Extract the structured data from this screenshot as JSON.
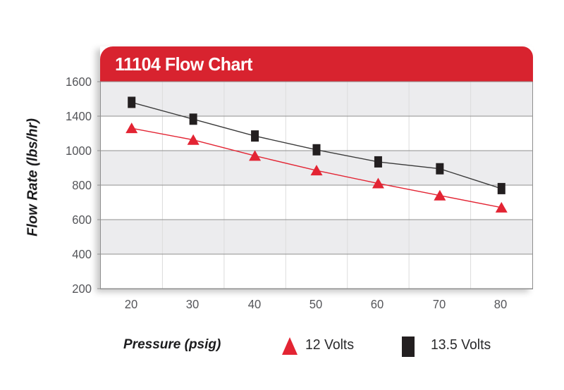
{
  "chart": {
    "title": "11104 Flow Chart",
    "banner_color": "#d8232f",
    "plot": {
      "band_color": "#ececee",
      "h_gridline_color": "#8f8f8f",
      "v_gridline_color": "#dcdcdc"
    },
    "y_axis": {
      "label": "Flow Rate (lbs/hr)",
      "tick_labels": [
        "1600",
        "1400",
        "1000",
        "800",
        "600",
        "400",
        "200"
      ]
    },
    "x_axis": {
      "label": "Pressure (psig)",
      "tick_labels": [
        "20",
        "30",
        "40",
        "50",
        "60",
        "70",
        "80"
      ]
    },
    "legend": [
      {
        "label": "12 Volts",
        "marker": "triangle",
        "color": "#e32433"
      },
      {
        "label": "13.5 Volts",
        "marker": "square",
        "color": "#231f20"
      }
    ]
  },
  "chart_data": {
    "type": "line",
    "title": "11104 Flow Chart",
    "xlabel": "Pressure (psig)",
    "ylabel": "Flow Rate (lbs/hr)",
    "x": [
      20,
      30,
      40,
      50,
      60,
      70,
      80
    ],
    "x_tick_labels": [
      "20",
      "30",
      "40",
      "50",
      "60",
      "70",
      "80"
    ],
    "y_tick_labels": [
      1600,
      1400,
      1000,
      800,
      600,
      400,
      200
    ],
    "grid": "horizontal-and-vertical, alternating gray/white horizontal bands",
    "legend_position": "bottom",
    "series": [
      {
        "name": "12 Volts",
        "marker": "triangle",
        "color": "#e32433",
        "values": [
          1260,
          1125,
          970,
          885,
          810,
          740,
          670
        ]
      },
      {
        "name": "13.5 Volts",
        "marker": "square",
        "color": "#231f20",
        "values": [
          1480,
          1365,
          1170,
          1010,
          935,
          895,
          780
        ]
      }
    ]
  }
}
